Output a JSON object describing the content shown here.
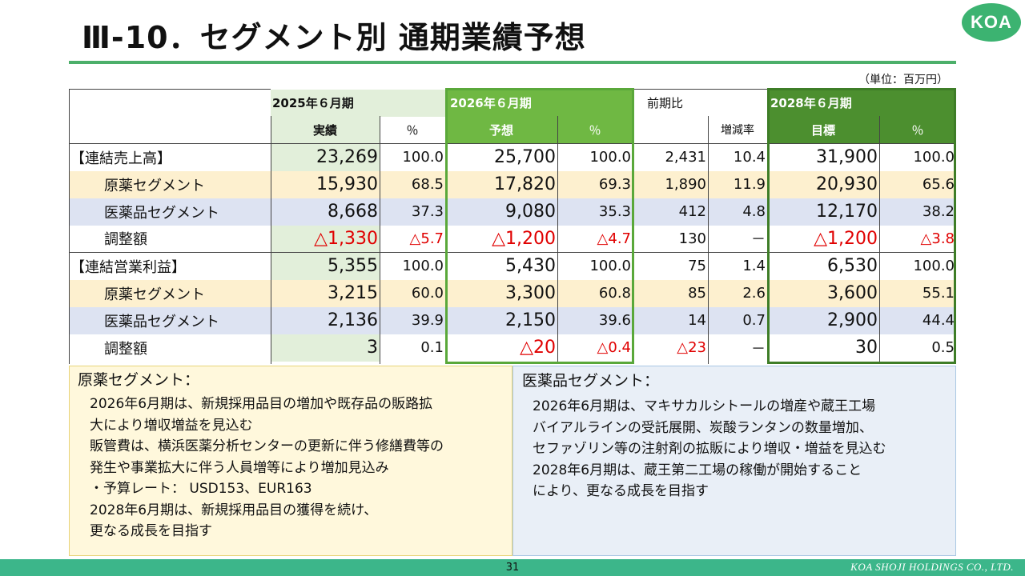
{
  "title": "Ⅲ-10．セグメント別 通期業績予想",
  "logo": "KOA",
  "unit": "（単位：百万円）",
  "colors": {
    "accent_green": "#4caf6a",
    "highlight_green": "#6fb843",
    "dark_green": "#4c8f2f",
    "negative": "#e00000",
    "footer": "#3cb68a"
  },
  "table": {
    "header": {
      "fy2025": "2025年６月期",
      "fy2026": "2026年６月期",
      "yoy": "前期比",
      "fy2028": "2028年６月期",
      "actual": "実績",
      "pct": "％",
      "forecast": "予想",
      "change_rate": "増減率",
      "target": "目標"
    },
    "rows": [
      {
        "label": "【連結売上高】",
        "a25": "23,269",
        "p25": "100.0",
        "f26": "25,700",
        "p26": "100.0",
        "yoy": "2,431",
        "rate": "10.4",
        "t28": "31,900",
        "p28": "100.0"
      },
      {
        "label": "原薬セグメント",
        "a25": "15,930",
        "p25": "68.5",
        "f26": "17,820",
        "p26": "69.3",
        "yoy": "1,890",
        "rate": "11.9",
        "t28": "20,930",
        "p28": "65.6"
      },
      {
        "label": "医薬品セグメント",
        "a25": "8,668",
        "p25": "37.3",
        "f26": "9,080",
        "p26": "35.3",
        "yoy": "412",
        "rate": "4.8",
        "t28": "12,170",
        "p28": "38.2"
      },
      {
        "label": "調整額",
        "a25": "△1,330",
        "p25": "△5.7",
        "f26": "△1,200",
        "p26": "△4.7",
        "yoy": "130",
        "rate": "－",
        "t28": "△1,200",
        "p28": "△3.8"
      },
      {
        "label": "【連結営業利益】",
        "a25": "5,355",
        "p25": "100.0",
        "f26": "5,430",
        "p26": "100.0",
        "yoy": "75",
        "rate": "1.4",
        "t28": "6,530",
        "p28": "100.0"
      },
      {
        "label": "原薬セグメント",
        "a25": "3,215",
        "p25": "60.0",
        "f26": "3,300",
        "p26": "60.8",
        "yoy": "85",
        "rate": "2.6",
        "t28": "3,600",
        "p28": "55.1"
      },
      {
        "label": "医薬品セグメント",
        "a25": "2,136",
        "p25": "39.9",
        "f26": "2,150",
        "p26": "39.6",
        "yoy": "14",
        "rate": "0.7",
        "t28": "2,900",
        "p28": "44.4"
      },
      {
        "label": "調整額",
        "a25": "3",
        "p25": "0.1",
        "f26": "△20",
        "p26": "△0.4",
        "yoy": "△23",
        "rate": "－",
        "t28": "30",
        "p28": "0.5"
      }
    ]
  },
  "notes": {
    "api": {
      "heading": "原薬セグメント：",
      "lines": [
        "2026年6月期は、新規採用品目の増加や既存品の販路拡",
        "大により増収増益を見込む",
        "販管費は、横浜医薬分析センターの更新に伴う修繕費等の",
        "発生や事業拡大に伴う人員増等により増加見込み",
        "・予算レート： USD153、EUR163",
        "2028年6月期は、新規採用品目の獲得を続け、",
        "更なる成長を目指す"
      ]
    },
    "pharma": {
      "heading": "医薬品セグメント：",
      "lines": [
        "2026年6月期は、マキサカルシトールの増産や蔵王工場",
        "バイアルラインの受託展開、炭酸ランタンの数量増加、",
        "セファゾリン等の注射剤の拡販により増収・増益を見込む",
        "2028年6月期は、蔵王第二工場の稼働が開始すること",
        "により、更なる成長を目指す"
      ]
    }
  },
  "footer": {
    "page": "31",
    "company": "KOA SHOJI HOLDINGS CO., LTD."
  }
}
